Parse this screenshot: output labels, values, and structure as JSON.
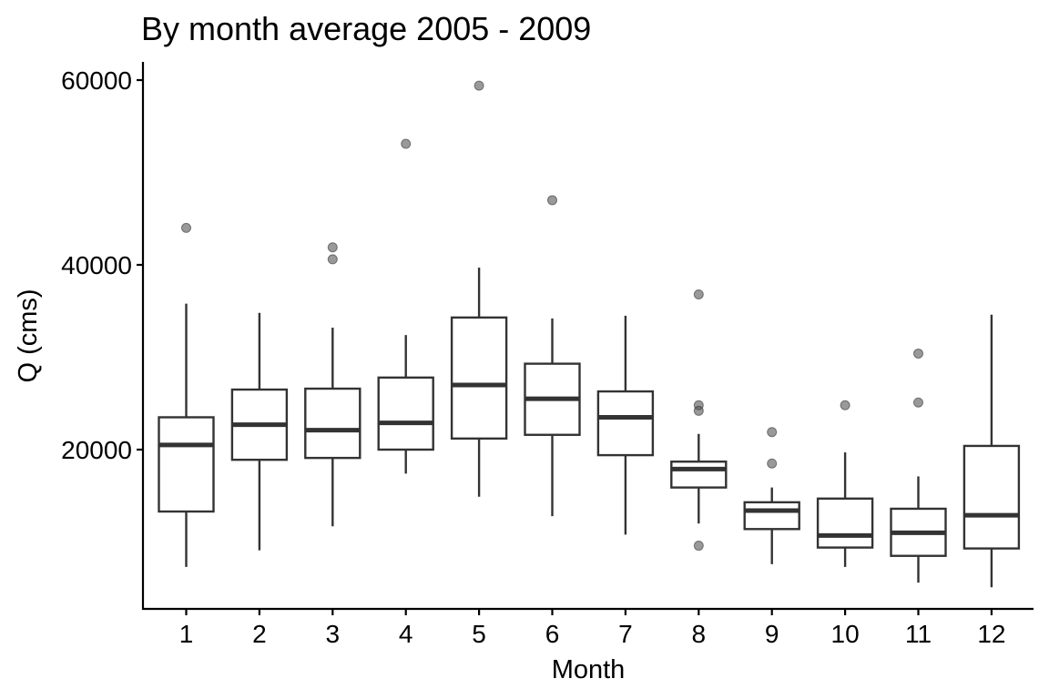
{
  "chart_data": {
    "type": "boxplot",
    "title": "By month average 2005 - 2009",
    "xlabel": "Month",
    "ylabel": "Q (cms)",
    "ylim": [
      3200,
      61200
    ],
    "yticks": [
      20000,
      40000,
      60000
    ],
    "ytick_labels": [
      "20000",
      "40000",
      "60000"
    ],
    "categories": [
      "1",
      "2",
      "3",
      "4",
      "5",
      "6",
      "7",
      "8",
      "9",
      "10",
      "11",
      "12"
    ],
    "boxes": [
      {
        "category": "1",
        "lower_whisker": 7300,
        "q1": 13300,
        "median": 20500,
        "q3": 23500,
        "upper_whisker": 35800,
        "outliers": [
          44000
        ]
      },
      {
        "category": "2",
        "lower_whisker": 9100,
        "q1": 18900,
        "median": 22700,
        "q3": 26500,
        "upper_whisker": 34800,
        "outliers": []
      },
      {
        "category": "3",
        "lower_whisker": 11700,
        "q1": 19100,
        "median": 22100,
        "q3": 26600,
        "upper_whisker": 33200,
        "outliers": [
          41900,
          40600
        ]
      },
      {
        "category": "4",
        "lower_whisker": 17400,
        "q1": 20000,
        "median": 22900,
        "q3": 27800,
        "upper_whisker": 32400,
        "outliers": [
          53100
        ]
      },
      {
        "category": "5",
        "lower_whisker": 14900,
        "q1": 21200,
        "median": 27000,
        "q3": 34300,
        "upper_whisker": 39700,
        "outliers": [
          59400
        ]
      },
      {
        "category": "6",
        "lower_whisker": 12800,
        "q1": 21600,
        "median": 25500,
        "q3": 29300,
        "upper_whisker": 34200,
        "outliers": [
          47000
        ]
      },
      {
        "category": "7",
        "lower_whisker": 10800,
        "q1": 19400,
        "median": 23500,
        "q3": 26300,
        "upper_whisker": 34500,
        "outliers": []
      },
      {
        "category": "8",
        "lower_whisker": 12000,
        "q1": 15900,
        "median": 17900,
        "q3": 18700,
        "upper_whisker": 21700,
        "outliers": [
          36800,
          24800,
          24200,
          9600
        ]
      },
      {
        "category": "9",
        "lower_whisker": 7600,
        "q1": 11400,
        "median": 13400,
        "q3": 14300,
        "upper_whisker": 15900,
        "outliers": [
          21900,
          18500
        ]
      },
      {
        "category": "10",
        "lower_whisker": 7300,
        "q1": 9400,
        "median": 10700,
        "q3": 14700,
        "upper_whisker": 19700,
        "outliers": [
          24800
        ]
      },
      {
        "category": "11",
        "lower_whisker": 5600,
        "q1": 8500,
        "median": 11000,
        "q3": 13600,
        "upper_whisker": 17100,
        "outliers": [
          30400,
          25100
        ]
      },
      {
        "category": "12",
        "lower_whisker": 5100,
        "q1": 9300,
        "median": 12900,
        "q3": 20400,
        "upper_whisker": 34600,
        "outliers": []
      }
    ],
    "grid": false,
    "legend": "none",
    "colors": {
      "box_fill": "#ffffff",
      "box_stroke": "#333333",
      "outlier": "#555555",
      "axis": "#000000"
    }
  }
}
